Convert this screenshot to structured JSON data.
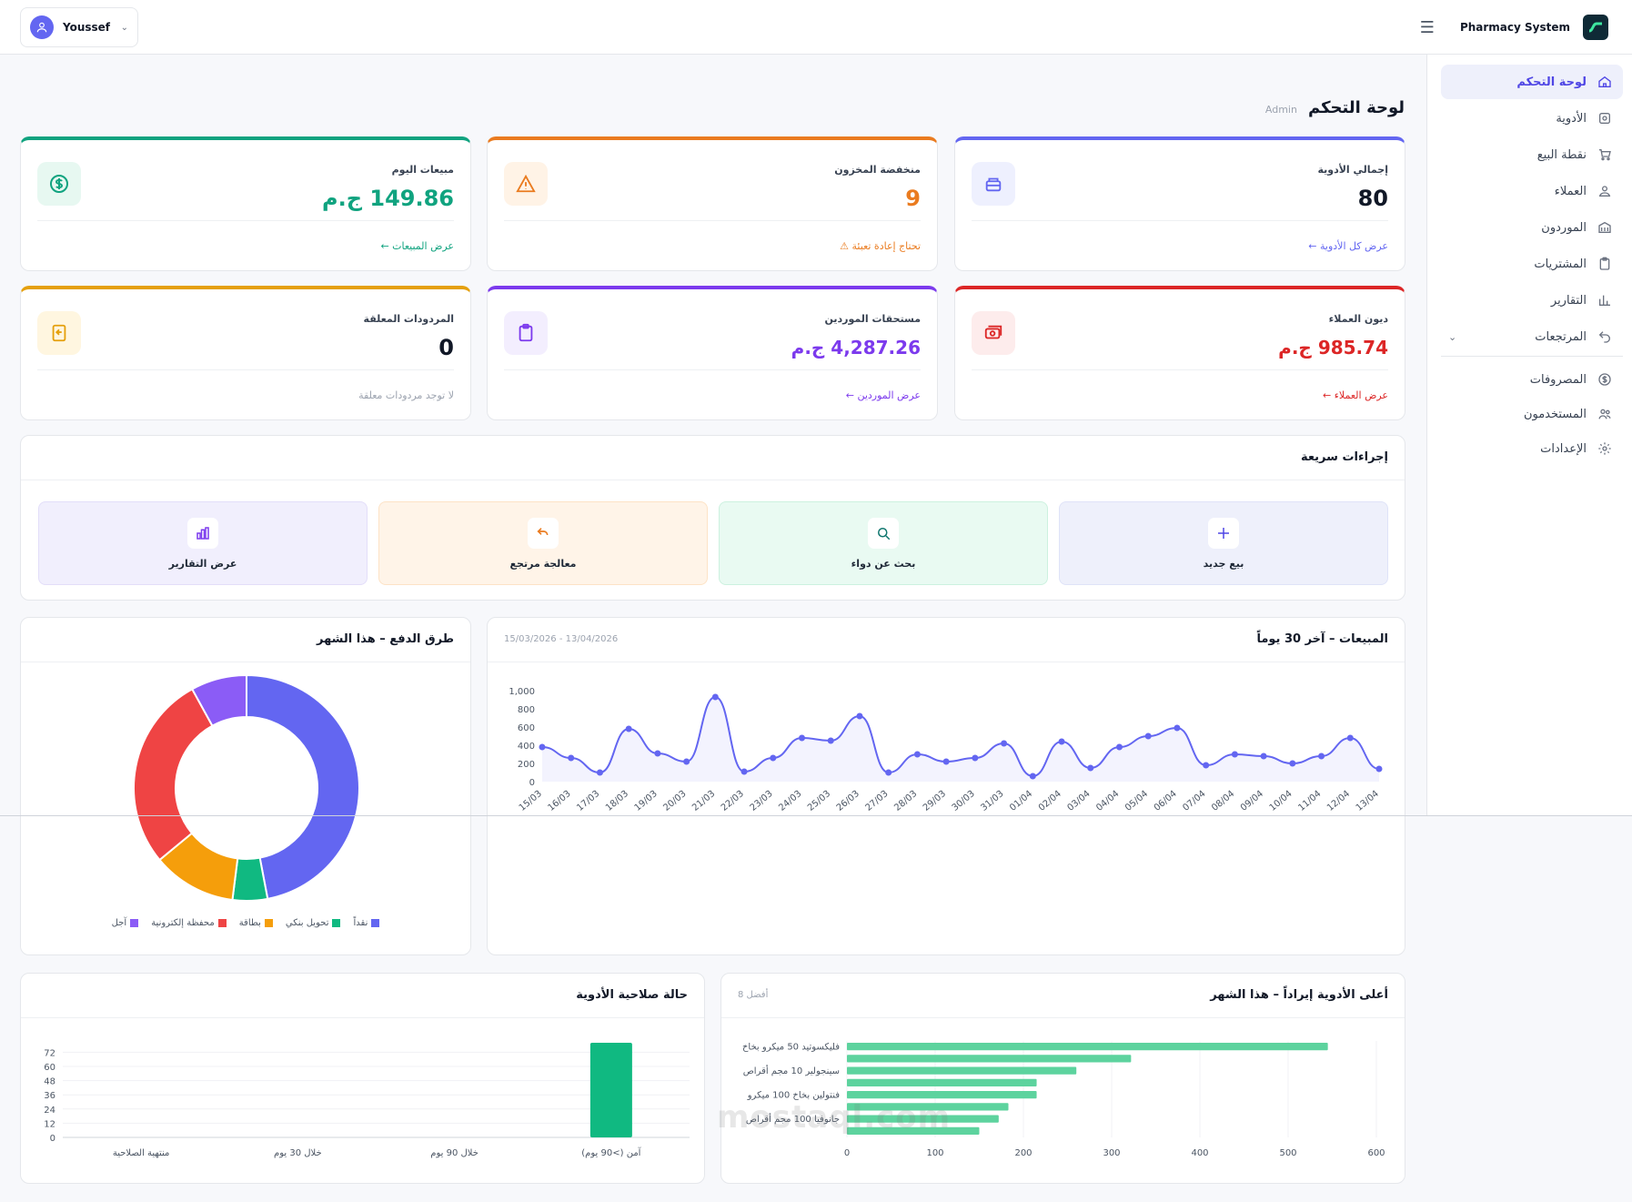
{
  "topbar": {
    "user_name": "Youssef",
    "brand": "Pharmacy System"
  },
  "sidebar": {
    "items": [
      {
        "label": "لوحة التحكم",
        "icon": "home-icon",
        "active": true
      },
      {
        "label": "الأدوية",
        "icon": "pill-icon"
      },
      {
        "label": "نقطة البيع",
        "icon": "cart-icon"
      },
      {
        "label": "العملاء",
        "icon": "users-icon"
      },
      {
        "label": "الموردون",
        "icon": "building-icon"
      },
      {
        "label": "المشتريات",
        "icon": "clipboard-icon"
      },
      {
        "label": "التقارير",
        "icon": "chart-icon"
      },
      {
        "label": "المرتجعات",
        "icon": "return-icon"
      },
      {
        "label": "المصروفات",
        "icon": "dollar-icon"
      },
      {
        "label": "المستخدمون",
        "icon": "user-group-icon"
      },
      {
        "label": "الإعدادات",
        "icon": "gear-icon"
      }
    ]
  },
  "page": {
    "title": "لوحة التحكم",
    "role": "Admin"
  },
  "stats": [
    {
      "label": "إجمالي الأدوية",
      "value": "80",
      "link": "عرض كل الأدوية ←",
      "color": "#6366f1"
    },
    {
      "label": "منخفضة المخزون",
      "value": "9",
      "link": "تحتاج إعادة تعبئة",
      "color": "#ea7b1f"
    },
    {
      "label": "مبيعات اليوم",
      "value": "149.86 ج.م",
      "link": "عرض المبيعات ←",
      "color": "#10a37f"
    },
    {
      "label": "ديون العملاء",
      "value": "985.74 ج.م",
      "link": "عرض العملاء ←",
      "color": "#dc2626"
    },
    {
      "label": "مستحقات الموردين",
      "value": "4,287.26 ج.م",
      "link": "عرض الموردين ←",
      "color": "#7c3aed"
    },
    {
      "label": "المردودات المعلقة",
      "value": "0",
      "link": "لا توجد مردودات معلقة",
      "color": "#e5a00d"
    }
  ],
  "quick": {
    "title": "إجراءات سريعة",
    "actions": [
      {
        "label": "بيع جديد",
        "icon": "plus-icon"
      },
      {
        "label": "بحث عن دواء",
        "icon": "search-icon"
      },
      {
        "label": "معالجة مرتجع",
        "icon": "undo-icon"
      },
      {
        "label": "عرض التقارير",
        "icon": "bar-chart-icon"
      }
    ]
  },
  "sales_panel": {
    "title": "المبيعات – آخر 30 يوماً",
    "range": "13/04/2026 - 15/03/2026"
  },
  "payments_panel": {
    "title": "طرق الدفع – هذا الشهر"
  },
  "expiry_panel": {
    "title": "حالة صلاحية الأدوية"
  },
  "top_panel": {
    "title": "أعلى الأدوية إيراداً – هذا الشهر",
    "meta": "أفضل 8"
  },
  "watermark": "mostaql.com",
  "chart_data": [
    {
      "type": "line",
      "title": "المبيعات – آخر 30 يوماً",
      "x": [
        "15/03",
        "16/03",
        "17/03",
        "18/03",
        "19/03",
        "20/03",
        "21/03",
        "22/03",
        "23/03",
        "24/03",
        "25/03",
        "26/03",
        "27/03",
        "28/03",
        "29/03",
        "30/03",
        "31/03",
        "01/04",
        "02/04",
        "03/04",
        "04/04",
        "05/04",
        "06/04",
        "07/04",
        "08/04",
        "09/04",
        "10/04",
        "11/04",
        "12/04",
        "13/04"
      ],
      "y": [
        380,
        260,
        100,
        580,
        310,
        220,
        930,
        110,
        260,
        480,
        450,
        720,
        100,
        300,
        220,
        260,
        420,
        60,
        440,
        150,
        380,
        500,
        590,
        180,
        300,
        280,
        200,
        280,
        480,
        140
      ],
      "yticks": [
        "0",
        "200",
        "400",
        "600",
        "800",
        "1,000"
      ],
      "ylim": [
        0,
        1000
      ],
      "color": "#6366f1"
    },
    {
      "type": "pie",
      "title": "طرق الدفع – هذا الشهر",
      "labels": [
        "نقداً",
        "تحويل بنكي",
        "بطاقة",
        "محفظة إلكترونية",
        "آجل"
      ],
      "values": [
        47,
        5,
        12,
        28,
        8
      ],
      "colors": [
        "#6366f1",
        "#10b981",
        "#f59e0b",
        "#ef4444",
        "#8b5cf6"
      ]
    },
    {
      "type": "bar",
      "title": "حالة صلاحية الأدوية",
      "categories": [
        "منتهية الصلاحية",
        "خلال 30 يوم",
        "خلال 90 يوم",
        "آمن (>90 يوم)"
      ],
      "values": [
        0,
        0,
        0,
        80
      ],
      "yticks": [
        "0",
        "12",
        "24",
        "36",
        "48",
        "60",
        "72"
      ],
      "ylim": [
        0,
        80
      ],
      "color": "#10b981"
    },
    {
      "type": "bar",
      "orientation": "horizontal",
      "title": "أعلى الأدوية إيراداً – هذا الشهر",
      "categories": [
        "فليكسوتيد 50 ميكرو بخاخ",
        "",
        "سينجولير 10 مجم أقراص",
        "",
        "فنتولين بخاخ 100 ميكرو",
        "",
        "جانوفيا 100 مجم أقراص",
        ""
      ],
      "values": [
        545,
        322,
        260,
        215,
        215,
        183,
        172,
        150
      ],
      "xticks": [
        "0",
        "100",
        "200",
        "300",
        "400",
        "500",
        "600"
      ],
      "xlim": [
        0,
        600
      ],
      "color": "#5dd39e"
    }
  ]
}
